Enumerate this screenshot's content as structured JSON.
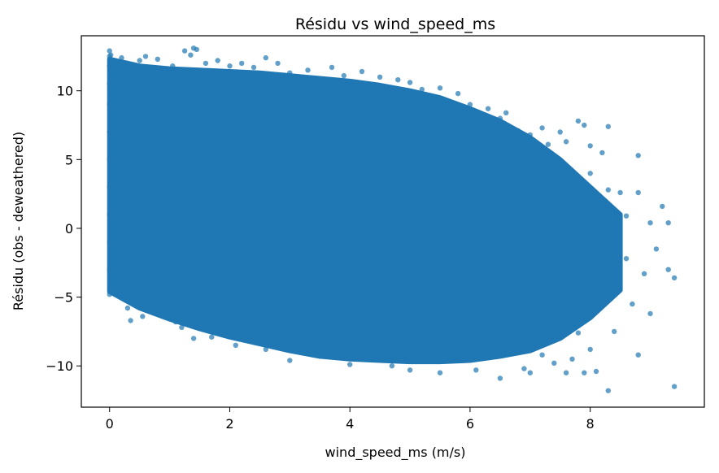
{
  "chart_data": {
    "type": "scatter",
    "title": "Résidu vs wind_speed_ms",
    "xlabel": "wind_speed_ms (m/s)",
    "ylabel": "Résidu (obs - deweathered)",
    "xlim": [
      -0.47,
      9.9
    ],
    "ylim": [
      -13,
      14
    ],
    "xticks": [
      {
        "value": 0,
        "label": "0"
      },
      {
        "value": 2,
        "label": "2"
      },
      {
        "value": 4,
        "label": "4"
      },
      {
        "value": 6,
        "label": "6"
      },
      {
        "value": 8,
        "label": "8"
      }
    ],
    "yticks": [
      {
        "value": -10,
        "label": "−10"
      },
      {
        "value": -5,
        "label": "−5"
      },
      {
        "value": 0,
        "label": "0"
      },
      {
        "value": 5,
        "label": "5"
      },
      {
        "value": 10,
        "label": "10"
      }
    ],
    "grid": false,
    "legend": "none",
    "marker_color": "#1f77b4",
    "series": [
      {
        "points": [
          [
            0.0,
            12.9
          ],
          [
            0.0,
            12.5
          ],
          [
            0.0,
            11.8
          ],
          [
            0.0,
            10.5
          ],
          [
            0.0,
            9.0
          ],
          [
            0.0,
            7.0
          ],
          [
            0.0,
            5.0
          ],
          [
            0.0,
            3.0
          ],
          [
            0.0,
            1.0
          ],
          [
            0.0,
            -1.0
          ],
          [
            0.0,
            -3.0
          ],
          [
            0.0,
            -4.8
          ],
          [
            0.02,
            12.6
          ],
          [
            0.05,
            11.5
          ],
          [
            0.05,
            -4.5
          ],
          [
            0.2,
            12.4
          ],
          [
            0.25,
            11.0
          ],
          [
            0.3,
            -5.8
          ],
          [
            0.35,
            -6.7
          ],
          [
            0.5,
            12.2
          ],
          [
            0.55,
            11.6
          ],
          [
            0.55,
            -6.4
          ],
          [
            0.6,
            12.5
          ],
          [
            0.7,
            -5.5
          ],
          [
            0.8,
            12.3
          ],
          [
            0.9,
            11.0
          ],
          [
            0.95,
            -6.2
          ],
          [
            1.05,
            11.8
          ],
          [
            1.1,
            -6.8
          ],
          [
            1.2,
            -7.2
          ],
          [
            1.25,
            12.9
          ],
          [
            1.35,
            12.6
          ],
          [
            1.4,
            13.1
          ],
          [
            1.4,
            -8.0
          ],
          [
            1.45,
            13.0
          ],
          [
            1.6,
            12.0
          ],
          [
            1.7,
            -7.9
          ],
          [
            1.8,
            12.2
          ],
          [
            2.0,
            11.8
          ],
          [
            2.1,
            -8.5
          ],
          [
            2.2,
            12.0
          ],
          [
            2.4,
            11.7
          ],
          [
            2.6,
            12.4
          ],
          [
            2.6,
            -8.8
          ],
          [
            2.8,
            12.0
          ],
          [
            3.0,
            11.3
          ],
          [
            3.0,
            -9.6
          ],
          [
            3.3,
            11.5
          ],
          [
            3.5,
            -9.3
          ],
          [
            3.7,
            11.7
          ],
          [
            3.9,
            11.1
          ],
          [
            4.0,
            -9.9
          ],
          [
            4.2,
            11.4
          ],
          [
            4.5,
            11.0
          ],
          [
            4.7,
            -10.0
          ],
          [
            4.8,
            10.8
          ],
          [
            5.0,
            10.6
          ],
          [
            5.0,
            -10.3
          ],
          [
            5.2,
            10.1
          ],
          [
            5.5,
            10.2
          ],
          [
            5.5,
            -10.5
          ],
          [
            5.8,
            9.8
          ],
          [
            6.0,
            9.0
          ],
          [
            6.1,
            -10.3
          ],
          [
            6.3,
            8.7
          ],
          [
            6.5,
            8.0
          ],
          [
            6.5,
            -10.9
          ],
          [
            6.6,
            8.4
          ],
          [
            6.8,
            7.1
          ],
          [
            6.9,
            -10.2
          ],
          [
            7.0,
            6.8
          ],
          [
            7.0,
            -10.5
          ],
          [
            7.2,
            7.3
          ],
          [
            7.2,
            -9.2
          ],
          [
            7.3,
            6.1
          ],
          [
            7.4,
            5.3
          ],
          [
            7.4,
            -9.8
          ],
          [
            7.5,
            7.0
          ],
          [
            7.6,
            6.3
          ],
          [
            7.6,
            -10.5
          ],
          [
            7.7,
            3.6
          ],
          [
            7.7,
            -9.5
          ],
          [
            7.8,
            7.8
          ],
          [
            7.8,
            -7.6
          ],
          [
            7.9,
            7.5
          ],
          [
            7.9,
            -10.5
          ],
          [
            8.0,
            6.0
          ],
          [
            8.0,
            4.0
          ],
          [
            8.0,
            -8.8
          ],
          [
            8.1,
            -10.4
          ],
          [
            8.2,
            5.5
          ],
          [
            8.2,
            1.5
          ],
          [
            8.2,
            -4.5
          ],
          [
            8.3,
            7.4
          ],
          [
            8.3,
            2.8
          ],
          [
            8.3,
            -11.8
          ],
          [
            8.4,
            -7.5
          ],
          [
            8.5,
            2.6
          ],
          [
            8.6,
            0.9
          ],
          [
            8.6,
            -2.2
          ],
          [
            8.7,
            -5.5
          ],
          [
            8.8,
            5.3
          ],
          [
            8.8,
            2.6
          ],
          [
            8.8,
            -9.2
          ],
          [
            8.9,
            -3.3
          ],
          [
            9.0,
            0.4
          ],
          [
            9.0,
            -6.2
          ],
          [
            9.1,
            -1.5
          ],
          [
            9.2,
            1.6
          ],
          [
            9.3,
            0.4
          ],
          [
            9.3,
            -3.0
          ],
          [
            9.4,
            -3.6
          ],
          [
            9.4,
            -11.5
          ]
        ]
      }
    ],
    "dense_region": {
      "x": [
        0.0,
        0.5,
        1.0,
        1.5,
        2.0,
        2.5,
        3.0,
        3.5,
        4.0,
        4.5,
        5.0,
        5.5,
        6.0,
        6.5,
        7.0,
        7.5,
        8.0,
        8.5
      ],
      "y_max": [
        12.3,
        11.8,
        11.6,
        11.5,
        11.4,
        11.3,
        11.1,
        10.9,
        10.7,
        10.4,
        10.0,
        9.5,
        8.7,
        7.8,
        6.6,
        5.0,
        3.0,
        1.0
      ],
      "y_min": [
        -4.6,
        -5.8,
        -6.6,
        -7.3,
        -7.9,
        -8.4,
        -8.9,
        -9.3,
        -9.5,
        -9.6,
        -9.7,
        -9.7,
        -9.6,
        -9.3,
        -8.9,
        -8.0,
        -6.5,
        -4.5
      ]
    }
  }
}
